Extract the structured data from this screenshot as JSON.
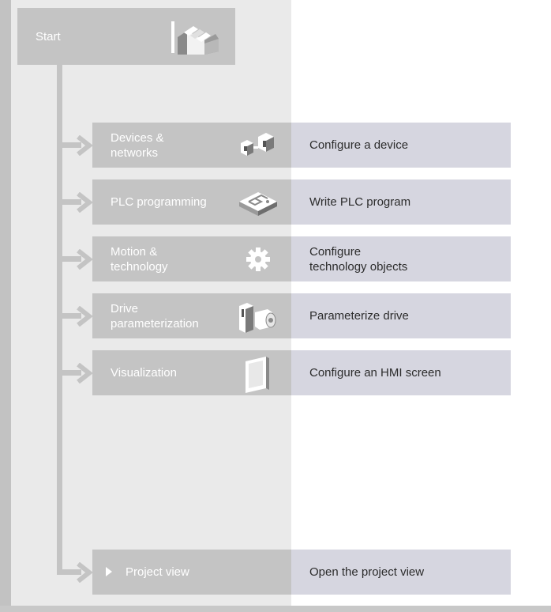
{
  "start": {
    "label": "Start",
    "icon": "stairs-icon"
  },
  "rows": [
    {
      "label": "Devices &\nnetworks",
      "icon": "devices-icon",
      "action": "Configure a device"
    },
    {
      "label": "PLC programming",
      "icon": "plc-block-icon",
      "action": "Write PLC program"
    },
    {
      "label": "Motion &\ntechnology",
      "icon": "gear-icon",
      "action": "Configure\ntechnology objects"
    },
    {
      "label": "Drive\nparameterization",
      "icon": "drive-icon",
      "action": "Parameterize drive"
    },
    {
      "label": "Visualization",
      "icon": "hmi-screen-icon",
      "action": "Configure an HMI screen"
    }
  ],
  "project_view": {
    "label": "Project view",
    "icon": "triangle-right-icon",
    "action": "Open the project view"
  },
  "colors": {
    "portal_gray": "#c4c4c4",
    "action_bg": "#d6d6e0",
    "panel_bg": "#eaeaea"
  }
}
